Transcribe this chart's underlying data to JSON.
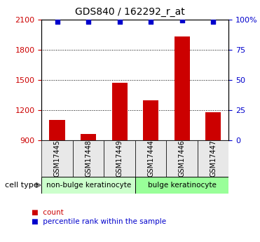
{
  "title": "GDS840 / 162292_r_at",
  "samples": [
    "GSM17445",
    "GSM17448",
    "GSM17449",
    "GSM17444",
    "GSM17446",
    "GSM17447"
  ],
  "counts": [
    1100,
    960,
    1470,
    1300,
    1930,
    1180
  ],
  "percentiles": [
    98,
    98,
    98,
    98,
    99,
    98
  ],
  "ylim_left": [
    900,
    2100
  ],
  "ylim_right": [
    0,
    100
  ],
  "yticks_left": [
    900,
    1200,
    1500,
    1800,
    2100
  ],
  "yticks_right": [
    0,
    25,
    50,
    75,
    100
  ],
  "bar_color": "#cc0000",
  "dot_color": "#0000cc",
  "groups": [
    {
      "label": "non-bulge keratinocyte",
      "indices": [
        0,
        1,
        2
      ],
      "color": "#ccffcc"
    },
    {
      "label": "bulge keratinocyte",
      "indices": [
        3,
        4,
        5
      ],
      "color": "#99ff99"
    }
  ],
  "cell_type_label": "cell type",
  "legend_items": [
    {
      "color": "#cc0000",
      "label": "count"
    },
    {
      "color": "#0000cc",
      "label": "percentile rank within the sample"
    }
  ],
  "bg_color": "#e8e8e8",
  "plot_bg": "#ffffff",
  "figsize": [
    3.71,
    3.45
  ],
  "dpi": 100
}
